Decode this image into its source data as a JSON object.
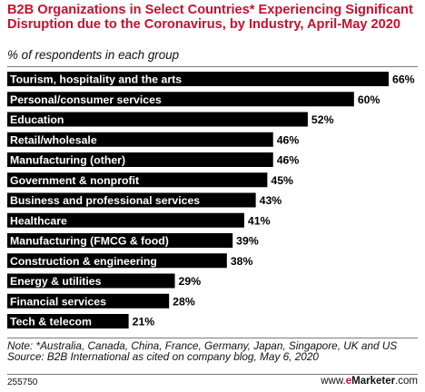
{
  "title": "B2B Organizations in Select Countries* Experiencing Significant Disruption due to the Coronavirus, by Industry, April-May 2020",
  "subtitle": "% of respondents in each group",
  "chart_data": {
    "type": "bar",
    "orientation": "horizontal",
    "categories": [
      "Tourism, hospitality and the arts",
      "Personal/consumer services",
      "Education",
      "Retail/wholesale",
      "Manufacturing (other)",
      "Government & nonprofit",
      "Business and professional services",
      "Healthcare",
      "Manufacturing (FMCG & food)",
      "Construction & engineering",
      "Energy & utilities",
      "Financial services",
      "Tech & telecom"
    ],
    "values": [
      66,
      60,
      52,
      46,
      46,
      45,
      43,
      41,
      39,
      38,
      29,
      28,
      21
    ],
    "value_suffix": "%",
    "xlim": [
      0,
      66
    ],
    "grid": false,
    "legend": "none",
    "bar_color": "#000000"
  },
  "note": "Note: *Australia, Canada, China, France, Germany, Japan, Singapore, UK and US",
  "source": "Source: B2B International as cited on company blog, May 6, 2020",
  "footer": {
    "id": "255750",
    "site": "www.",
    "brand_e": "e",
    "brand_rest": "Marketer",
    "domain": ".com"
  }
}
